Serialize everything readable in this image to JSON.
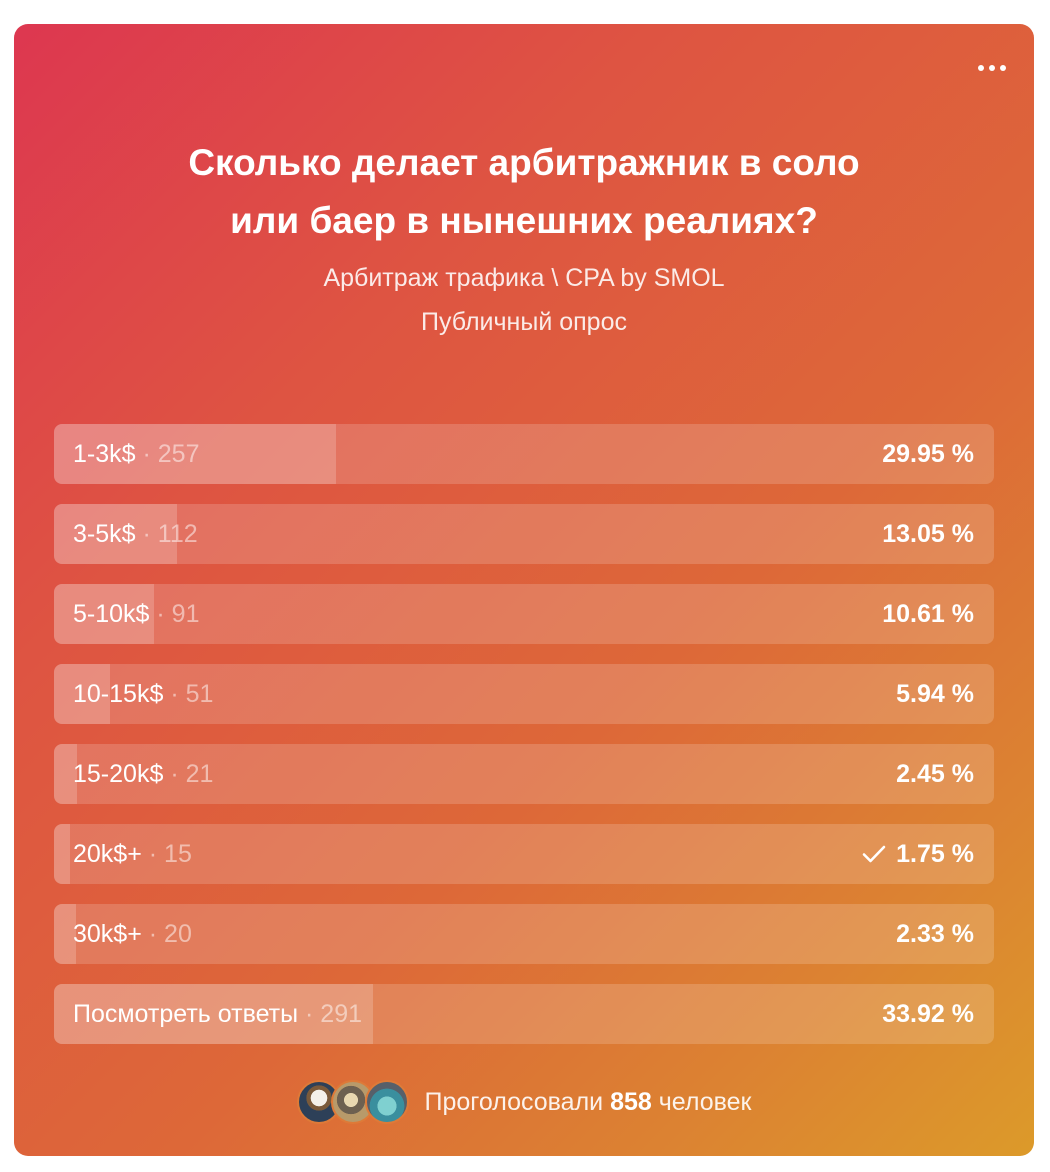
{
  "poll": {
    "title_line1": "Сколько делает арбитражник в соло",
    "title_line2": "или баер в нынешних реалиях?",
    "source": "Арбитраж трафика \\ CPA by SMOL",
    "type": "Публичный опрос",
    "options": [
      {
        "label": "1-3k$",
        "count_text": "· 257",
        "percent": "29.95 %",
        "share": 29.95,
        "checked": false
      },
      {
        "label": "3-5k$",
        "count_text": "· 112",
        "percent": "13.05 %",
        "share": 13.05,
        "checked": false
      },
      {
        "label": "5-10k$",
        "count_text": "· 91",
        "percent": "10.61 %",
        "share": 10.61,
        "checked": false
      },
      {
        "label": "10-15k$",
        "count_text": "· 51",
        "percent": "5.94 %",
        "share": 5.94,
        "checked": false
      },
      {
        "label": "15-20k$",
        "count_text": "· 21",
        "percent": "2.45 %",
        "share": 2.45,
        "checked": false
      },
      {
        "label": "20k$+",
        "count_text": "· 15",
        "percent": "1.75 %",
        "share": 1.75,
        "checked": true
      },
      {
        "label": "30k$+",
        "count_text": "· 20",
        "percent": "2.33 %",
        "share": 2.33,
        "checked": false
      },
      {
        "label": "Посмотреть ответы",
        "count_text": "· 291",
        "percent": "33.92 %",
        "share": 33.92,
        "checked": false
      }
    ],
    "footer": {
      "prefix": "Проголосовали",
      "count": "858",
      "suffix": "человек"
    }
  },
  "colors": {
    "gradient_start": "#dd3750",
    "gradient_end": "#dc9a2a"
  },
  "icons": {
    "menu": "more-horizontal-icon",
    "selected": "checkmark-icon"
  }
}
